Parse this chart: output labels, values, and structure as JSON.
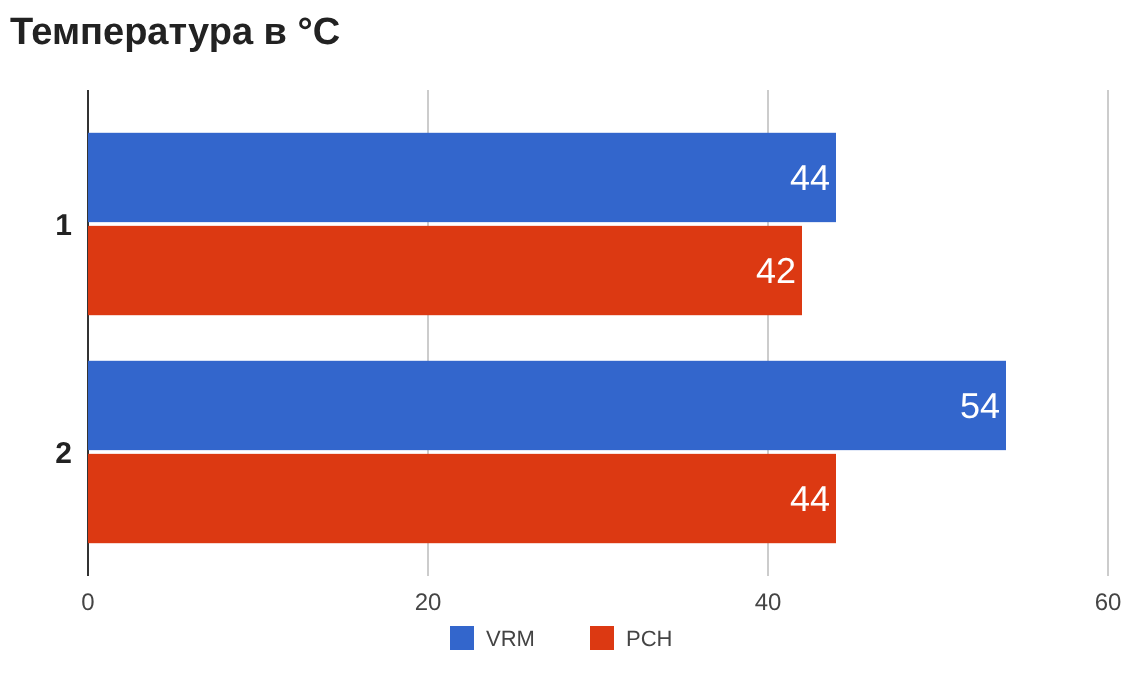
{
  "chart_data": {
    "type": "bar",
    "orientation": "horizontal",
    "title": "Температура в °C",
    "categories": [
      "1",
      "2"
    ],
    "series": [
      {
        "name": "VRM",
        "color": "#3366cc",
        "values": [
          44,
          54
        ]
      },
      {
        "name": "PCH",
        "color": "#dc3912",
        "values": [
          42,
          44
        ]
      }
    ],
    "xlim": [
      0,
      60
    ],
    "xticks": [
      0,
      20,
      40,
      60
    ],
    "grid": "x",
    "legend": "bottom",
    "data_labels": true
  }
}
